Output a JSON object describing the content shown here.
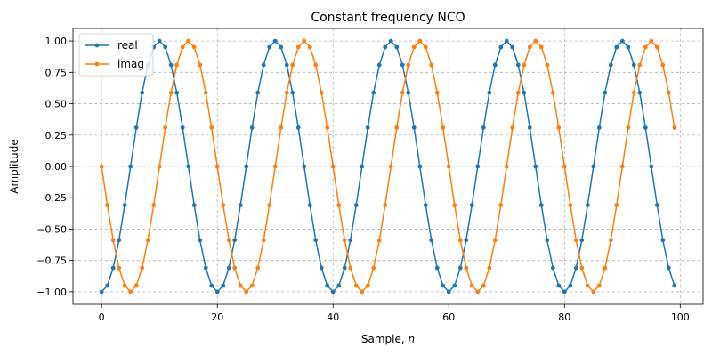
{
  "chart_data": {
    "type": "line",
    "title": "Constant frequency NCO",
    "xlabel": "Sample, n",
    "ylabel": "Amplitude",
    "xlim": [
      -4.95,
      103.95
    ],
    "ylim": [
      -1.1,
      1.1
    ],
    "xticks": [
      0,
      20,
      40,
      60,
      80,
      100
    ],
    "xtick_labels": [
      "0",
      "20",
      "40",
      "60",
      "80",
      "100"
    ],
    "yticks": [
      -1.0,
      -0.75,
      -0.5,
      -0.25,
      0.0,
      0.25,
      0.5,
      0.75,
      1.0
    ],
    "ytick_labels": [
      "−1.00",
      "−0.75",
      "−0.50",
      "−0.25",
      "0.00",
      "0.25",
      "0.50",
      "0.75",
      "1.00"
    ],
    "grid": true,
    "legend_position": "upper-left",
    "x": [
      0,
      1,
      2,
      3,
      4,
      5,
      6,
      7,
      8,
      9,
      10,
      11,
      12,
      13,
      14,
      15,
      16,
      17,
      18,
      19,
      20,
      21,
      22,
      23,
      24,
      25,
      26,
      27,
      28,
      29,
      30,
      31,
      32,
      33,
      34,
      35,
      36,
      37,
      38,
      39,
      40,
      41,
      42,
      43,
      44,
      45,
      46,
      47,
      48,
      49,
      50,
      51,
      52,
      53,
      54,
      55,
      56,
      57,
      58,
      59,
      60,
      61,
      62,
      63,
      64,
      65,
      66,
      67,
      68,
      69,
      70,
      71,
      72,
      73,
      74,
      75,
      76,
      77,
      78,
      79,
      80,
      81,
      82,
      83,
      84,
      85,
      86,
      87,
      88,
      89,
      90,
      91,
      92,
      93,
      94,
      95,
      96,
      97,
      98,
      99
    ],
    "series": [
      {
        "name": "real",
        "color": "#1f77b4",
        "values": [
          -1,
          -0.951,
          -0.809,
          -0.588,
          -0.309,
          0,
          0.309,
          0.588,
          0.809,
          0.951,
          1,
          0.951,
          0.809,
          0.588,
          0.309,
          0,
          -0.309,
          -0.588,
          -0.809,
          -0.951,
          -1,
          -0.951,
          -0.809,
          -0.588,
          -0.309,
          0,
          0.309,
          0.588,
          0.809,
          0.951,
          1,
          0.951,
          0.809,
          0.588,
          0.309,
          0,
          -0.309,
          -0.588,
          -0.809,
          -0.951,
          -1,
          -0.951,
          -0.809,
          -0.588,
          -0.309,
          0,
          0.309,
          0.588,
          0.809,
          0.951,
          1,
          0.951,
          0.809,
          0.588,
          0.309,
          0,
          -0.309,
          -0.588,
          -0.809,
          -0.951,
          -1,
          -0.951,
          -0.809,
          -0.588,
          -0.309,
          0,
          0.309,
          0.588,
          0.809,
          0.951,
          1,
          0.951,
          0.809,
          0.588,
          0.309,
          0,
          -0.309,
          -0.588,
          -0.809,
          -0.951,
          -1,
          -0.951,
          -0.809,
          -0.588,
          -0.309,
          0,
          0.309,
          0.588,
          0.809,
          0.951,
          1,
          0.951,
          0.809,
          0.588,
          0.309,
          0,
          -0.309,
          -0.588,
          -0.809,
          -0.951
        ]
      },
      {
        "name": "imag",
        "color": "#ff7f0e",
        "values": [
          0,
          -0.309,
          -0.588,
          -0.809,
          -0.951,
          -1,
          -0.951,
          -0.809,
          -0.588,
          -0.309,
          0,
          0.309,
          0.588,
          0.809,
          0.951,
          1,
          0.951,
          0.809,
          0.588,
          0.309,
          0,
          -0.309,
          -0.588,
          -0.809,
          -0.951,
          -1,
          -0.951,
          -0.809,
          -0.588,
          -0.309,
          0,
          0.309,
          0.588,
          0.809,
          0.951,
          1,
          0.951,
          0.809,
          0.588,
          0.309,
          0,
          -0.309,
          -0.588,
          -0.809,
          -0.951,
          -1,
          -0.951,
          -0.809,
          -0.588,
          -0.309,
          0,
          0.309,
          0.588,
          0.809,
          0.951,
          1,
          0.951,
          0.809,
          0.588,
          0.309,
          0,
          -0.309,
          -0.588,
          -0.809,
          -0.951,
          -1,
          -0.951,
          -0.809,
          -0.588,
          -0.309,
          0,
          0.309,
          0.588,
          0.809,
          0.951,
          1,
          0.951,
          0.809,
          0.588,
          0.309,
          0,
          -0.309,
          -0.588,
          -0.809,
          -0.951,
          -1,
          -0.951,
          -0.809,
          -0.588,
          -0.309,
          0,
          0.309,
          0.588,
          0.809,
          0.951,
          1,
          0.951,
          0.809,
          0.588,
          0.309
        ]
      }
    ]
  }
}
